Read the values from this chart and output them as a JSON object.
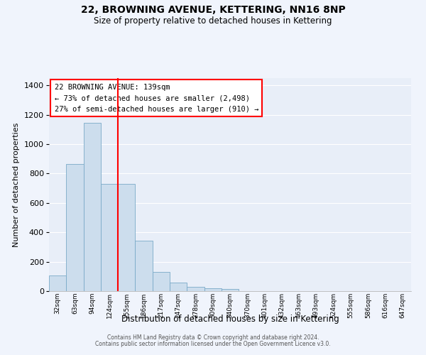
{
  "title": "22, BROWNING AVENUE, KETTERING, NN16 8NP",
  "subtitle": "Size of property relative to detached houses in Kettering",
  "xlabel": "Distribution of detached houses by size in Kettering",
  "ylabel": "Number of detached properties",
  "bar_color": "#ccdded",
  "bar_edge_color": "#7aaac8",
  "background_color": "#e8eef8",
  "grid_color": "#ffffff",
  "fig_bg_color": "#f0f4fc",
  "categories": [
    "32sqm",
    "63sqm",
    "94sqm",
    "124sqm",
    "155sqm",
    "186sqm",
    "217sqm",
    "247sqm",
    "278sqm",
    "309sqm",
    "340sqm",
    "370sqm",
    "401sqm",
    "432sqm",
    "463sqm",
    "493sqm",
    "524sqm",
    "555sqm",
    "586sqm",
    "616sqm",
    "647sqm"
  ],
  "values": [
    105,
    865,
    1145,
    730,
    730,
    345,
    130,
    60,
    30,
    20,
    15,
    0,
    0,
    0,
    0,
    0,
    0,
    0,
    0,
    0,
    0
  ],
  "ylim": [
    0,
    1450
  ],
  "yticks": [
    0,
    200,
    400,
    600,
    800,
    1000,
    1200,
    1400
  ],
  "property_line_x": 3.5,
  "annotation_text_line1": "22 BROWNING AVENUE: 139sqm",
  "annotation_text_line2": "← 73% of detached houses are smaller (2,498)",
  "annotation_text_line3": "27% of semi-detached houses are larger (910) →",
  "footer_line1": "Contains HM Land Registry data © Crown copyright and database right 2024.",
  "footer_line2": "Contains public sector information licensed under the Open Government Licence v3.0."
}
